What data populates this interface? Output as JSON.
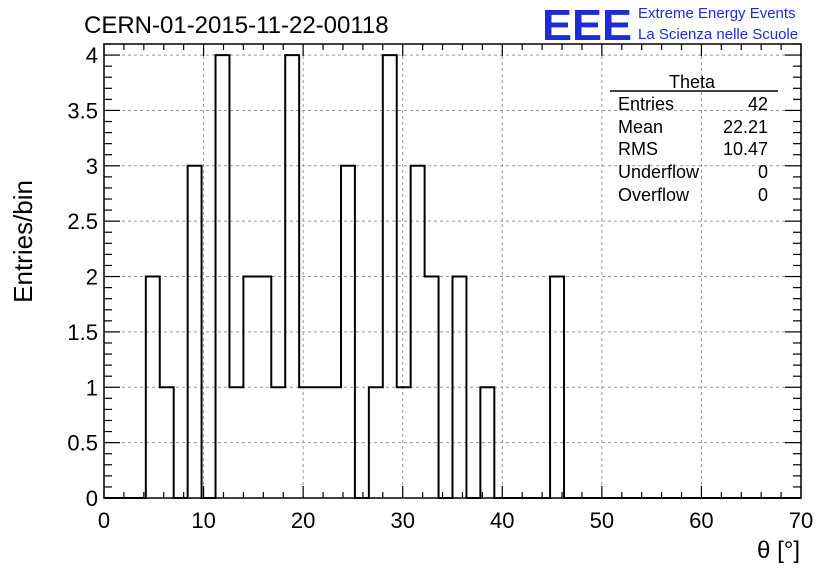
{
  "header": {
    "run_title": "CERN-01-2015-11-22-00118",
    "logo_text": "EEE",
    "logo_line1": "Extreme Energy Events",
    "logo_line2": "La Scienza nelle Scuole"
  },
  "stats_box": {
    "title": "Theta",
    "rows": [
      {
        "label": "Entries",
        "value": "42"
      },
      {
        "label": "Mean",
        "value": "22.21"
      },
      {
        "label": "RMS",
        "value": "10.47"
      },
      {
        "label": "Underflow",
        "value": "0"
      },
      {
        "label": "Overflow",
        "value": "0"
      }
    ]
  },
  "colors": {
    "line": "#000000",
    "grid": "#999999",
    "logo": "#1f2bd6"
  },
  "chart_data": {
    "type": "bar",
    "style": "step-histogram",
    "xlabel": "θ [°]",
    "ylabel": "Entries/bin",
    "xlim": [
      0,
      70
    ],
    "ylim": [
      0,
      4.1
    ],
    "bin_width": 1.4,
    "grid": true,
    "x_ticks": [
      0,
      10,
      20,
      30,
      40,
      50,
      60,
      70
    ],
    "x_tick_labels": [
      "0",
      "10",
      "20",
      "30",
      "40",
      "50",
      "60",
      "70"
    ],
    "y_ticks": [
      0,
      0.5,
      1,
      1.5,
      2,
      2.5,
      3,
      3.5,
      4
    ],
    "y_tick_labels": [
      "0",
      "0.5",
      "1",
      "1.5",
      "2",
      "2.5",
      "3",
      "3.5",
      "4"
    ],
    "values": [
      0,
      0,
      0,
      2,
      1,
      0,
      3,
      0,
      4,
      1,
      2,
      2,
      1,
      4,
      1,
      1,
      1,
      3,
      0,
      1,
      4,
      1,
      3,
      2,
      0,
      2,
      0,
      1,
      0,
      0,
      0,
      0,
      2,
      0,
      0,
      0,
      0,
      0,
      0,
      0,
      0,
      0,
      0,
      0,
      0,
      0,
      0,
      0,
      0,
      0
    ]
  }
}
